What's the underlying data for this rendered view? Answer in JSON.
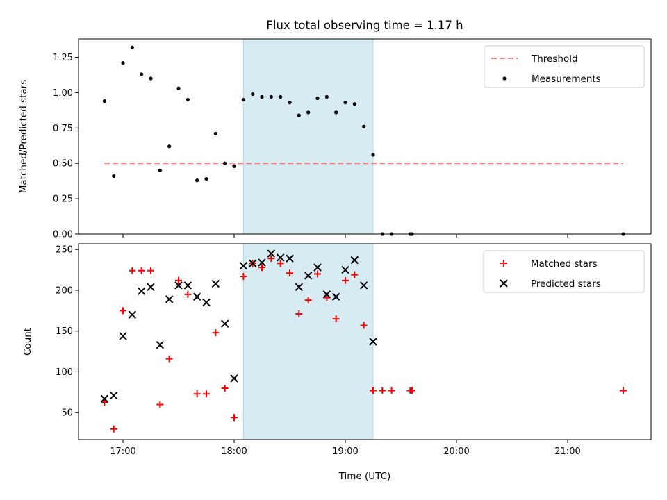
{
  "chart_data": [
    {
      "type": "scatter",
      "title": "Flux total observing time = 1.17 h",
      "xlabel": "",
      "ylabel": "Matched/Predicted stars",
      "xlim": [
        "16:36",
        "21:45"
      ],
      "ylim": [
        0,
        1.38
      ],
      "yticks": [
        0,
        0.25,
        0.5,
        0.75,
        1.0,
        1.25
      ],
      "ytick_labels": [
        "0.00",
        "0.25",
        "0.50",
        "0.75",
        "1.00",
        "1.25"
      ],
      "xticks": [
        "17:00",
        "18:00",
        "19:00",
        "20:00",
        "21:00"
      ],
      "xtick_labels_visible": false,
      "shaded_region": {
        "start": "18:05",
        "end": "19:15",
        "color": "#add8e6"
      },
      "legend_position": "top-right",
      "series": [
        {
          "name": "Threshold",
          "kind": "line",
          "style": "dashed",
          "color": "#ff6b6b",
          "x": [
            "16:50",
            "21:30"
          ],
          "y": [
            0.5,
            0.5
          ]
        },
        {
          "name": "Measurements",
          "kind": "scatter",
          "marker": "dot",
          "color": "#000000",
          "x": [
            "16:50",
            "16:55",
            "17:00",
            "17:05",
            "17:10",
            "17:15",
            "17:20",
            "17:25",
            "17:30",
            "17:35",
            "17:40",
            "17:45",
            "17:50",
            "17:55",
            "18:00",
            "18:05",
            "18:10",
            "18:15",
            "18:20",
            "18:25",
            "18:30",
            "18:35",
            "18:40",
            "18:45",
            "18:50",
            "18:55",
            "19:00",
            "19:05",
            "19:10",
            "19:15",
            "19:20",
            "19:25",
            "19:35",
            "19:36",
            "21:30"
          ],
          "y": [
            0.94,
            0.41,
            1.21,
            1.32,
            1.13,
            1.1,
            0.45,
            0.62,
            1.03,
            0.95,
            0.38,
            0.39,
            0.71,
            0.5,
            0.48,
            0.95,
            0.99,
            0.97,
            0.97,
            0.97,
            0.93,
            0.84,
            0.86,
            0.96,
            0.97,
            0.86,
            0.93,
            0.92,
            0.76,
            0.56,
            0.0,
            0.0,
            0.0,
            0.0,
            0.0
          ]
        }
      ]
    },
    {
      "type": "scatter",
      "title": "",
      "xlabel": "Time (UTC)",
      "ylabel": "Count",
      "xlim": [
        "16:36",
        "21:45"
      ],
      "ylim": [
        17,
        257
      ],
      "yticks": [
        50,
        100,
        150,
        200,
        250
      ],
      "ytick_labels": [
        "50",
        "100",
        "150",
        "200",
        "250"
      ],
      "xticks": [
        "17:00",
        "18:00",
        "19:00",
        "20:00",
        "21:00"
      ],
      "xtick_labels": [
        "17:00",
        "18:00",
        "19:00",
        "20:00",
        "21:00"
      ],
      "shaded_region": {
        "start": "18:05",
        "end": "19:15",
        "color": "#add8e6"
      },
      "legend_position": "top-right",
      "series": [
        {
          "name": "Matched stars",
          "kind": "scatter",
          "marker": "plus",
          "color": "#ff0000",
          "x": [
            "16:50",
            "16:55",
            "17:00",
            "17:05",
            "17:10",
            "17:15",
            "17:20",
            "17:25",
            "17:30",
            "17:35",
            "17:40",
            "17:45",
            "17:50",
            "17:55",
            "18:00",
            "18:05",
            "18:10",
            "18:15",
            "18:20",
            "18:25",
            "18:30",
            "18:35",
            "18:40",
            "18:45",
            "18:50",
            "18:55",
            "19:00",
            "19:05",
            "19:10",
            "19:15",
            "19:20",
            "19:25",
            "19:35",
            "19:36",
            "21:30"
          ],
          "y": [
            63,
            30,
            175,
            224,
            224,
            224,
            60,
            116,
            212,
            195,
            73,
            73,
            148,
            80,
            44,
            217,
            233,
            228,
            239,
            233,
            221,
            171,
            188,
            220,
            191,
            165,
            212,
            219,
            157,
            77,
            77,
            77,
            77,
            77,
            77
          ]
        },
        {
          "name": "Predicted stars",
          "kind": "scatter",
          "marker": "x",
          "color": "#000000",
          "x": [
            "16:50",
            "16:55",
            "17:00",
            "17:05",
            "17:10",
            "17:15",
            "17:20",
            "17:25",
            "17:30",
            "17:35",
            "17:40",
            "17:45",
            "17:50",
            "17:55",
            "18:00",
            "18:05",
            "18:10",
            "18:15",
            "18:20",
            "18:25",
            "18:30",
            "18:35",
            "18:40",
            "18:45",
            "18:50",
            "18:55",
            "19:00",
            "19:05",
            "19:10",
            "19:15"
          ],
          "y": [
            67,
            71,
            144,
            170,
            199,
            204,
            133,
            189,
            206,
            206,
            192,
            185,
            208,
            159,
            92,
            230,
            233,
            234,
            245,
            240,
            239,
            204,
            218,
            228,
            195,
            192,
            225,
            237,
            206,
            137
          ]
        }
      ]
    }
  ]
}
